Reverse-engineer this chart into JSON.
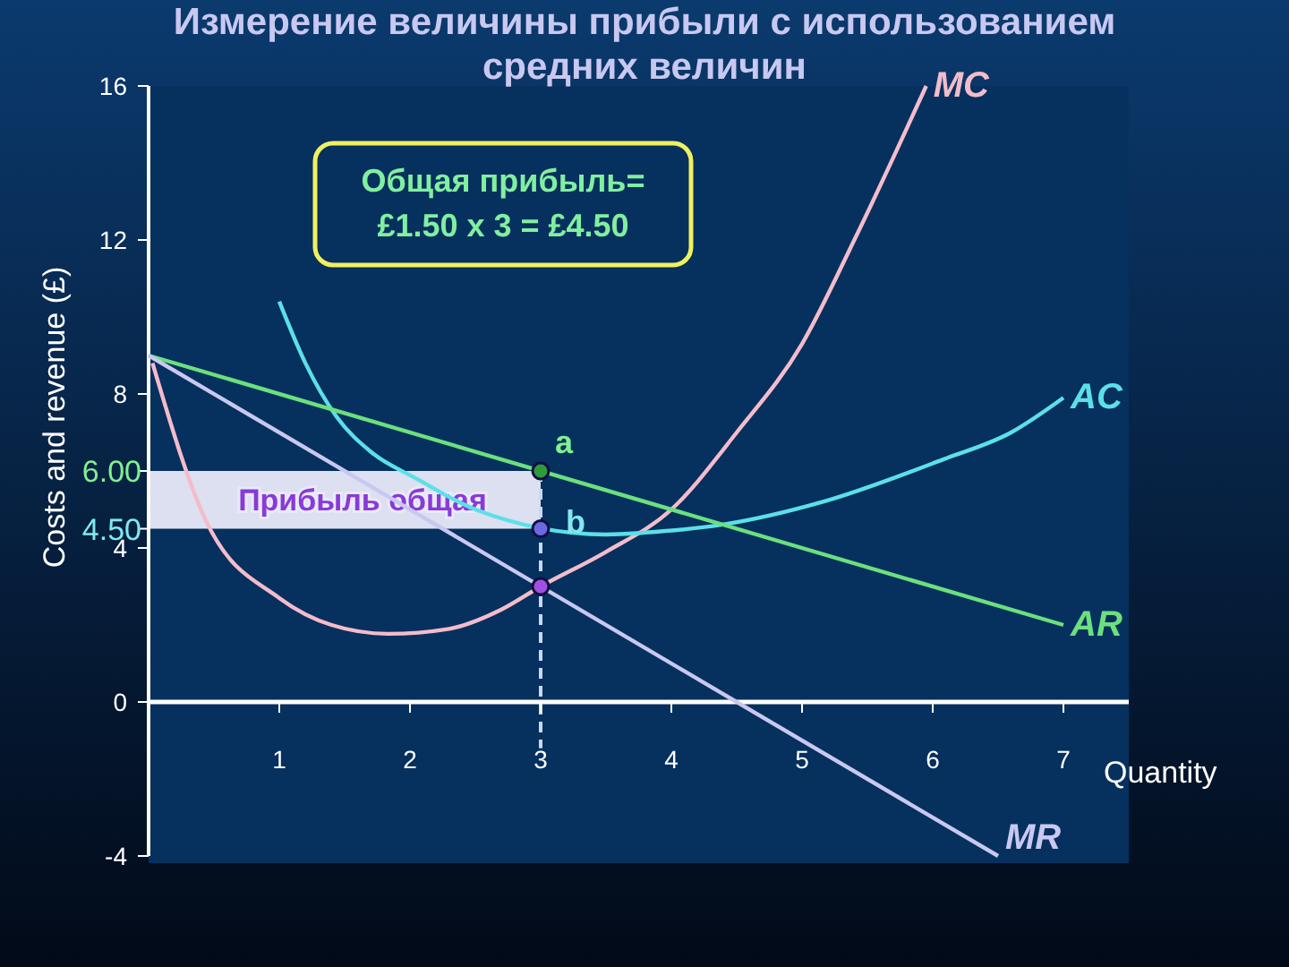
{
  "chart_data": {
    "type": "line",
    "title": "Измерение величины прибыли с использованием средних величин",
    "xlabel": "Quantity",
    "ylabel": "Costs and revenue (£)",
    "xlim": [
      0,
      7.5
    ],
    "xticks": [
      1,
      2,
      3,
      4,
      5,
      6,
      7
    ],
    "ylim": [
      -4,
      16
    ],
    "yticks": [
      -4,
      0,
      4,
      {
        "value": 4.5,
        "label": "4.50"
      },
      {
        "value": 6,
        "label": "6.00"
      },
      8,
      12,
      16
    ],
    "grid": false,
    "legend": false,
    "series": [
      {
        "name": "MC",
        "color": "#f4bccb",
        "x": [
          0.03,
          0.44,
          1,
          1.4,
          1.83,
          2.3,
          2.7,
          3,
          3.5,
          4,
          4.5,
          5,
          5.4,
          5.95
        ],
        "values": [
          8.8,
          4.7,
          2.7,
          2.0,
          1.77,
          1.9,
          2.4,
          3,
          3.9,
          5,
          7,
          9.3,
          12,
          16
        ]
      },
      {
        "name": "AC",
        "color": "#5ce0e8",
        "x": [
          1,
          1.2,
          1.44,
          1.7,
          2.05,
          2.5,
          3,
          3.5,
          3.8,
          4.38,
          5.16,
          6.08,
          6.6,
          7
        ],
        "values": [
          10.4,
          8.8,
          7.4,
          6.5,
          5.8,
          5.0,
          null,
          4.35,
          4.4,
          4.6,
          5.2,
          6.3,
          7.0,
          7.9
        ]
      },
      {
        "name": "AR",
        "color": "#6be07e",
        "x": [
          0,
          7
        ],
        "values": [
          9,
          2
        ]
      },
      {
        "name": "MR",
        "color": "#c8c8f0",
        "x": [
          0,
          6.5
        ],
        "values": [
          9,
          -4
        ]
      },
      {
        "type": "scatter",
        "x": [
          3,
          3,
          3
        ],
        "values": [
          6,
          4.5,
          3
        ],
        "colors": [
          "#2e9a3c",
          "#6a6ae0",
          "#a050e0"
        ]
      }
    ],
    "bands": [
      {
        "axis": "y",
        "from": 4.5,
        "to": 6,
        "label": "Прибыль общая",
        "color": "#e8eaf8"
      }
    ],
    "ref_lines": [
      {
        "axis": "x",
        "value": 3,
        "line_style": "dashed",
        "color": "#c8d8f8"
      }
    ],
    "annotations": [
      "Общая прибыль=\n£1.50 x 3 = £4.50",
      {
        "text": "a",
        "x": 3,
        "y": 6
      },
      {
        "text": "b",
        "x": 3,
        "y": 4.5
      }
    ]
  }
}
